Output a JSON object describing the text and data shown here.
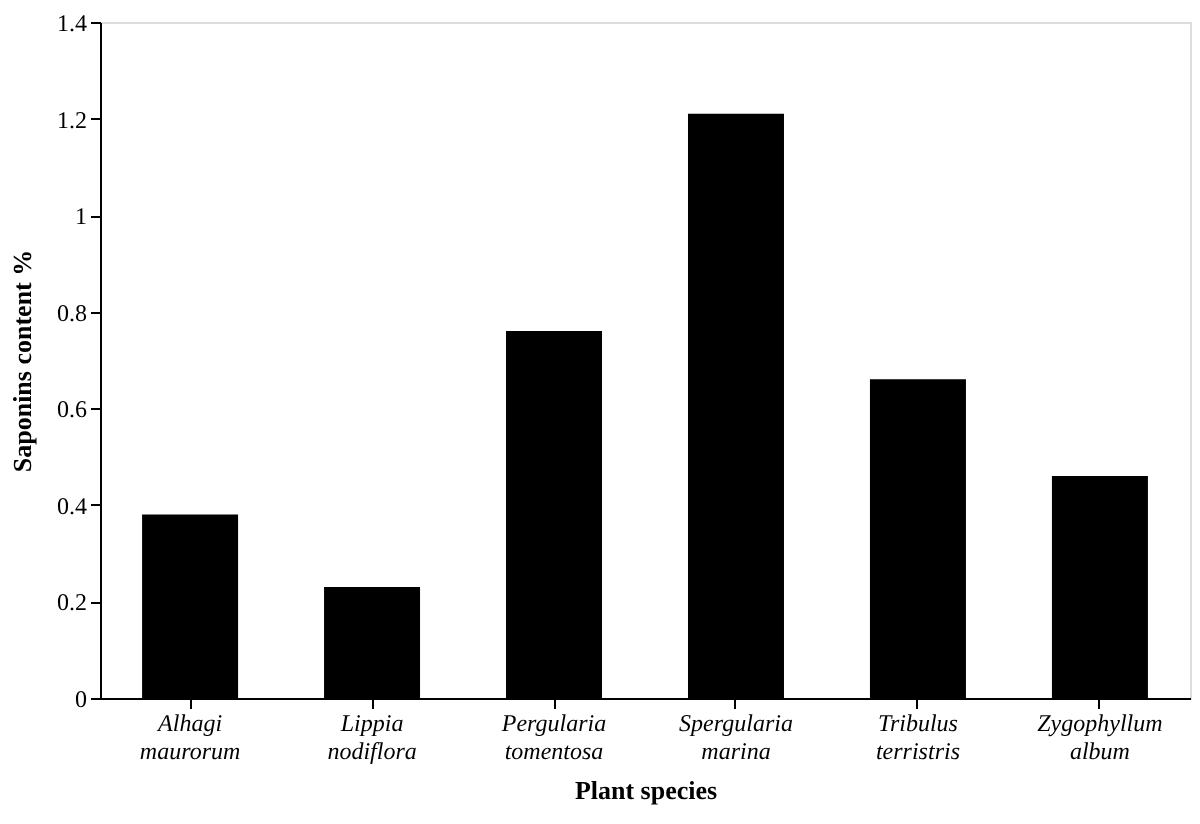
{
  "chart_data": {
    "type": "bar",
    "xlabel": "Plant species",
    "ylabel": "Saponins content %",
    "categories": [
      "Alhagi maurorum",
      "Lippia nodiflora",
      "Pergularia tomentosa",
      "Spergularia marina",
      "Tribulus terristris",
      "Zygophyllum album"
    ],
    "values": [
      0.38,
      0.23,
      0.76,
      1.21,
      0.66,
      0.46
    ],
    "color": "#000000",
    "ylim": [
      0,
      1.4
    ],
    "yticks": [
      0,
      0.2,
      0.4,
      0.6,
      0.8,
      1,
      1.2,
      1.4
    ],
    "grid": false
  }
}
